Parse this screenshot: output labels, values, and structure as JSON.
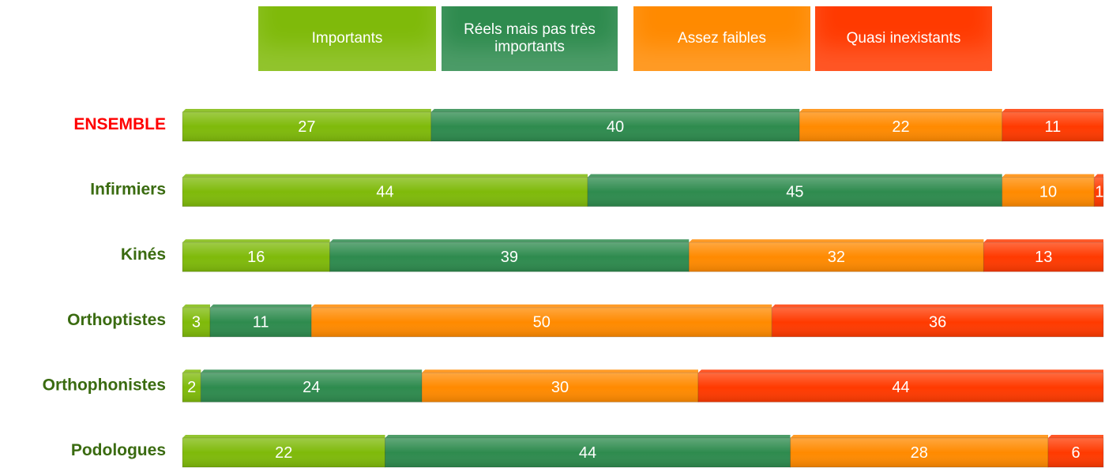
{
  "chart_data": {
    "type": "stacked-bar-horizontal",
    "categories": [
      "ENSEMBLE",
      "Infirmiers",
      "Kinés",
      "Orthoptistes",
      "Orthophonistes",
      "Podologues"
    ],
    "category_colors": [
      "#ff0000",
      "#3a6b10",
      "#3a6b10",
      "#3a6b10",
      "#3a6b10",
      "#3a6b10"
    ],
    "series": [
      {
        "name": "Importants",
        "color": "#7fba0a",
        "values": [
          27,
          44,
          16,
          3,
          2,
          22
        ]
      },
      {
        "name": "Réels mais pas très importants",
        "color": "#2e8b4e",
        "values": [
          40,
          45,
          39,
          11,
          24,
          44
        ]
      },
      {
        "name": "Assez faibles",
        "color": "#ff8a00",
        "values": [
          22,
          10,
          32,
          50,
          30,
          28
        ]
      },
      {
        "name": "Quasi inexistants",
        "color": "#ff3a00",
        "values": [
          11,
          1,
          13,
          36,
          44,
          6
        ]
      }
    ],
    "xlim": [
      0,
      100
    ],
    "legend": "top"
  }
}
